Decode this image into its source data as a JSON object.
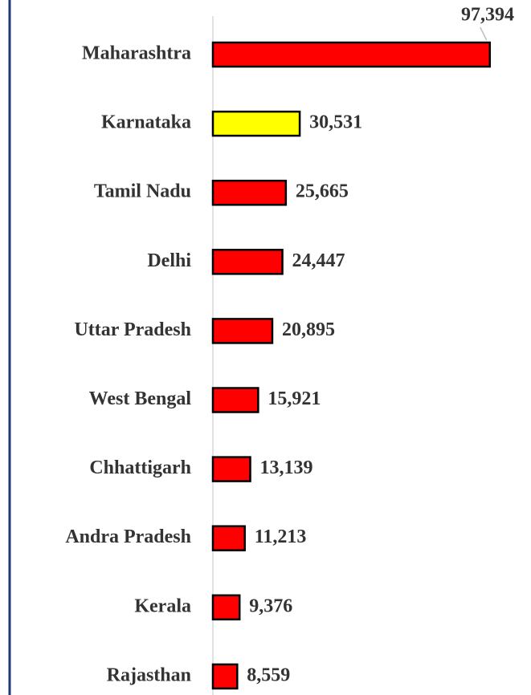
{
  "chart_data": {
    "type": "barh",
    "categories": [
      "Maharashtra",
      "Karnataka",
      "Tamil Nadu",
      "Delhi",
      "Uttar Pradesh",
      "West Bengal",
      "Chhattigarh",
      "Andra Pradesh",
      "Kerala",
      "Rajasthan"
    ],
    "values": [
      97394,
      30531,
      25665,
      24447,
      20895,
      15921,
      13139,
      11213,
      9376,
      8559
    ],
    "value_labels": [
      "97,394",
      "30,531",
      "25,665",
      "24,447",
      "20,895",
      "15,921",
      "13,139",
      "11,213",
      "9,376",
      "8,559"
    ],
    "colors": [
      "#ff0000",
      "#ffff00",
      "#ff0000",
      "#ff0000",
      "#ff0000",
      "#ff0000",
      "#ff0000",
      "#ff0000",
      "#ff0000",
      "#ff0000"
    ],
    "xlim": [
      0,
      100000
    ]
  }
}
